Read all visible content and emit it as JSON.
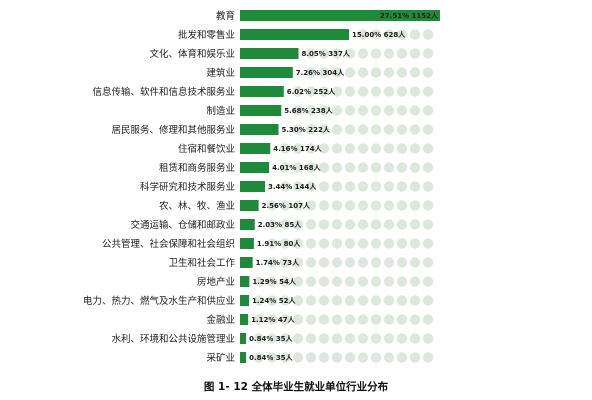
{
  "caption": "图 1- 12  全体毕业生就业单位行业分布",
  "colors": {
    "bar": "#1e8a3a",
    "track_dot": "#dde8dd"
  },
  "chart_data": {
    "type": "bar",
    "orientation": "horizontal",
    "title": "",
    "xlabel": "",
    "ylabel": "",
    "xlim": [
      0,
      27.51
    ],
    "grid": false,
    "legend": "none",
    "categories": [
      "教育",
      "批发和零售业",
      "文化、体育和娱乐业",
      "建筑业",
      "信息传输、软件和信息技术服务业",
      "制造业",
      "居民服务、修理和其他服务业",
      "住宿和餐饮业",
      "租赁和商务服务业",
      "科学研究和技术服务业",
      "农、林、牧、渔业",
      "交通运输、仓储和邮政业",
      "公共管理、社会保障和社会组织",
      "卫生和社会工作",
      "房地产业",
      "电力、热力、燃气及水生产和供应业",
      "金融业",
      "水利、环境和公共设施管理业",
      "采矿业"
    ],
    "values": [
      27.51,
      15.0,
      8.05,
      7.26,
      6.02,
      5.68,
      5.3,
      4.16,
      4.01,
      3.44,
      2.56,
      2.03,
      1.91,
      1.74,
      1.29,
      1.24,
      1.12,
      0.84,
      0.84
    ],
    "counts": [
      1152,
      628,
      337,
      304,
      252,
      238,
      222,
      174,
      168,
      144,
      107,
      85,
      80,
      73,
      54,
      52,
      47,
      35,
      35
    ],
    "data_labels": [
      "27.51% 1152人",
      "15.00% 628人",
      "8.05% 337人",
      "7.26% 304人",
      "6.02% 252人",
      "5.68% 238人",
      "5.30% 222人",
      "4.16% 174人",
      "4.01% 168人",
      "3.44% 144人",
      "2.56% 107人",
      "2.03% 85人",
      "1.91% 80人",
      "1.74% 73人",
      "1.29% 54人",
      "1.24% 52人",
      "1.12% 47人",
      "0.84% 35人",
      "0.84% 35人"
    ]
  }
}
